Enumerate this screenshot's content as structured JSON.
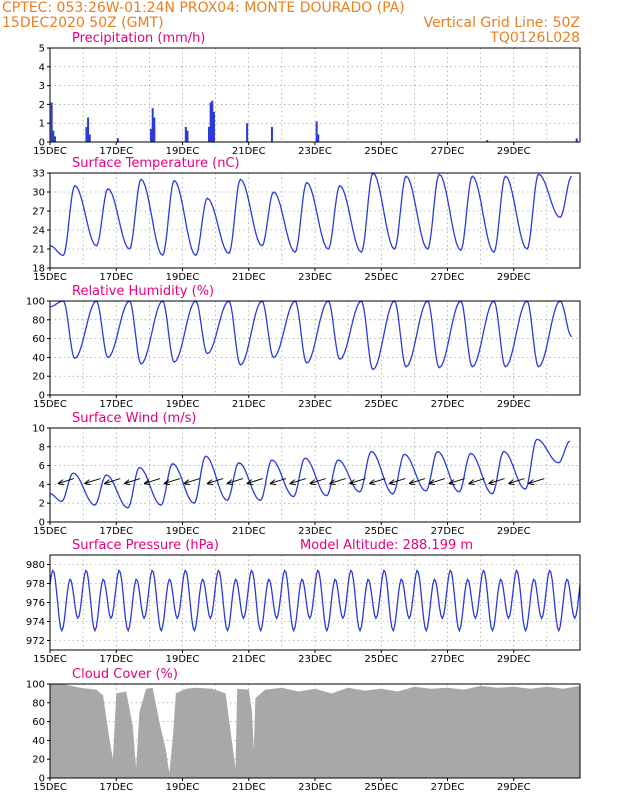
{
  "header": {
    "left_line1": "CPTEC:   053:26W-01:24N   PROX04: MONTE DOURADO (PA)",
    "left_line2": "15DEC2020 50Z (GMT)",
    "right_line2": "Vertical Grid Line: 50Z",
    "right_line3": "TQ0126L028"
  },
  "colors": {
    "header": "#e87f1e",
    "title": "#e6007e",
    "series": "#2b3bd6",
    "cloud": "#a8a8a8",
    "arrow": "#000000"
  },
  "x_tick_labels": [
    "15DEC",
    "17DEC",
    "19DEC",
    "21DEC",
    "23DEC",
    "25DEC",
    "27DEC",
    "29DEC"
  ],
  "chart_data": [
    {
      "id": "precip",
      "type": "bar",
      "title": "Precipitation (mm/h)",
      "ylim": [
        0,
        5
      ],
      "yticks": [
        0,
        1,
        2,
        3,
        4,
        5
      ],
      "x_days": [
        15,
        31
      ],
      "points": [
        {
          "d": 15.05,
          "v": 2.1
        },
        {
          "d": 15.1,
          "v": 0.6
        },
        {
          "d": 15.15,
          "v": 0.3
        },
        {
          "d": 16.1,
          "v": 0.8
        },
        {
          "d": 16.15,
          "v": 1.3
        },
        {
          "d": 16.2,
          "v": 0.4
        },
        {
          "d": 17.05,
          "v": 0.2
        },
        {
          "d": 18.05,
          "v": 0.7
        },
        {
          "d": 18.1,
          "v": 1.8
        },
        {
          "d": 18.15,
          "v": 1.3
        },
        {
          "d": 19.1,
          "v": 0.8
        },
        {
          "d": 19.15,
          "v": 0.6
        },
        {
          "d": 19.8,
          "v": 0.8
        },
        {
          "d": 19.85,
          "v": 2.1
        },
        {
          "d": 19.9,
          "v": 2.2
        },
        {
          "d": 19.95,
          "v": 1.6
        },
        {
          "d": 20.95,
          "v": 1.0
        },
        {
          "d": 21.7,
          "v": 0.8
        },
        {
          "d": 23.05,
          "v": 1.1
        },
        {
          "d": 23.1,
          "v": 0.4
        },
        {
          "d": 28.2,
          "v": 0.1
        },
        {
          "d": 30.9,
          "v": 0.2
        }
      ]
    },
    {
      "id": "temp",
      "type": "line",
      "title": "Surface Temperature (nC)",
      "ylim": [
        18,
        33
      ],
      "yticks": [
        18,
        21,
        24,
        27,
        30,
        33
      ],
      "peak_phase": 0.75,
      "min_phase": 0.4,
      "start": {
        "d": 15.0,
        "v": 21.5
      },
      "daily": [
        {
          "max": 31.0,
          "min": 20.0
        },
        {
          "max": 30.5,
          "min": 21.5
        },
        {
          "max": 32.0,
          "min": 21.0
        },
        {
          "max": 31.8,
          "min": 20.0
        },
        {
          "max": 29.0,
          "min": 20.0
        },
        {
          "max": 32.0,
          "min": 20.3
        },
        {
          "max": 30.0,
          "min": 21.5
        },
        {
          "max": 31.5,
          "min": 20.5
        },
        {
          "max": 31.0,
          "min": 21.0
        },
        {
          "max": 33.0,
          "min": 20.5
        },
        {
          "max": 32.5,
          "min": 21.0
        },
        {
          "max": 32.8,
          "min": 21.0
        },
        {
          "max": 32.5,
          "min": 20.8
        },
        {
          "max": 32.5,
          "min": 20.5
        },
        {
          "max": 32.8,
          "min": 21.0
        },
        {
          "max": 32.5,
          "min": 26.0
        }
      ],
      "first_min": 20.0
    },
    {
      "id": "rh",
      "type": "line",
      "title": "Relative Humidity (%)",
      "ylim": [
        0,
        100
      ],
      "yticks": [
        0,
        20,
        40,
        60,
        80,
        100
      ],
      "peak_phase": 0.4,
      "min_phase": 0.75,
      "start": {
        "d": 15.0,
        "v": 94
      },
      "daily": [
        {
          "max": 100,
          "min": 39
        },
        {
          "max": 100,
          "min": 40
        },
        {
          "max": 100,
          "min": 33
        },
        {
          "max": 100,
          "min": 35
        },
        {
          "max": 100,
          "min": 44
        },
        {
          "max": 100,
          "min": 32
        },
        {
          "max": 100,
          "min": 40
        },
        {
          "max": 100,
          "min": 34
        },
        {
          "max": 100,
          "min": 38
        },
        {
          "max": 100,
          "min": 27
        },
        {
          "max": 100,
          "min": 30
        },
        {
          "max": 100,
          "min": 29
        },
        {
          "max": 100,
          "min": 30
        },
        {
          "max": 100,
          "min": 30
        },
        {
          "max": 100,
          "min": 30
        },
        {
          "max": 100,
          "min": 62
        }
      ]
    },
    {
      "id": "wind",
      "type": "line",
      "title": "Surface Wind (m/s)",
      "ylim": [
        0,
        10
      ],
      "yticks": [
        0,
        2,
        4,
        6,
        8,
        10
      ],
      "peak_phase": 0.7,
      "min_phase": 0.35,
      "start": {
        "d": 15.0,
        "v": 3.0
      },
      "daily": [
        {
          "max": 5.2,
          "min": 2.2
        },
        {
          "max": 5.0,
          "min": 1.8
        },
        {
          "max": 5.8,
          "min": 1.5
        },
        {
          "max": 6.2,
          "min": 1.8
        },
        {
          "max": 7.0,
          "min": 2.0
        },
        {
          "max": 6.3,
          "min": 2.3
        },
        {
          "max": 6.6,
          "min": 2.3
        },
        {
          "max": 6.8,
          "min": 2.7
        },
        {
          "max": 6.6,
          "min": 2.8
        },
        {
          "max": 7.5,
          "min": 3.2
        },
        {
          "max": 7.2,
          "min": 3.0
        },
        {
          "max": 7.5,
          "min": 3.3
        },
        {
          "max": 7.3,
          "min": 3.2
        },
        {
          "max": 7.5,
          "min": 3.0
        },
        {
          "max": 8.8,
          "min": 3.5
        },
        {
          "max": 8.6,
          "min": 6.3
        }
      ],
      "arrows_days": [
        15.3,
        16.1,
        16.7,
        17.3,
        17.9,
        18.5,
        19.1,
        19.8,
        20.4,
        21.0,
        21.7,
        22.3,
        22.9,
        23.5,
        24.1,
        24.7,
        25.3,
        25.9,
        26.5,
        27.1,
        27.7,
        28.3,
        28.9,
        29.5
      ]
    },
    {
      "id": "pressure",
      "type": "line",
      "title": "Surface Pressure (hPa)",
      "annotation": "Model Altitude: 288.199  m",
      "ylim": [
        971,
        981
      ],
      "yticks": [
        972,
        974,
        976,
        978,
        980
      ],
      "waves": [
        {
          "a": 2.6,
          "period": 0.5,
          "phase": 0.05
        },
        {
          "a": 0.8,
          "period": 1.0,
          "phase": 0.3
        }
      ],
      "base": 976.3
    },
    {
      "id": "cloud",
      "type": "area",
      "title": "Cloud Cover (%)",
      "ylim": [
        0,
        100
      ],
      "yticks": [
        0,
        20,
        40,
        60,
        80,
        100
      ],
      "points": [
        [
          15.0,
          100
        ],
        [
          15.4,
          100
        ],
        [
          15.9,
          96
        ],
        [
          16.4,
          94
        ],
        [
          16.6,
          88
        ],
        [
          16.8,
          40
        ],
        [
          16.9,
          20
        ],
        [
          17.0,
          90
        ],
        [
          17.3,
          92
        ],
        [
          17.5,
          55
        ],
        [
          17.6,
          10
        ],
        [
          17.7,
          70
        ],
        [
          17.9,
          95
        ],
        [
          18.1,
          96
        ],
        [
          18.3,
          60
        ],
        [
          18.5,
          30
        ],
        [
          18.6,
          5
        ],
        [
          18.7,
          40
        ],
        [
          18.8,
          90
        ],
        [
          19.1,
          95
        ],
        [
          19.4,
          96
        ],
        [
          19.9,
          95
        ],
        [
          20.3,
          90
        ],
        [
          20.6,
          10
        ],
        [
          20.65,
          95
        ],
        [
          21.0,
          94
        ],
        [
          21.1,
          70
        ],
        [
          21.15,
          30
        ],
        [
          21.2,
          85
        ],
        [
          21.5,
          94
        ],
        [
          22.0,
          96
        ],
        [
          22.5,
          92
        ],
        [
          23.0,
          95
        ],
        [
          23.5,
          90
        ],
        [
          24.0,
          96
        ],
        [
          24.5,
          93
        ],
        [
          25.0,
          95
        ],
        [
          25.5,
          92
        ],
        [
          26.0,
          97
        ],
        [
          26.5,
          95
        ],
        [
          27.0,
          96
        ],
        [
          27.5,
          94
        ],
        [
          28.0,
          98
        ],
        [
          28.5,
          96
        ],
        [
          29.0,
          97
        ],
        [
          29.5,
          95
        ],
        [
          30.0,
          97
        ],
        [
          30.5,
          95
        ],
        [
          31.0,
          98
        ]
      ]
    }
  ]
}
